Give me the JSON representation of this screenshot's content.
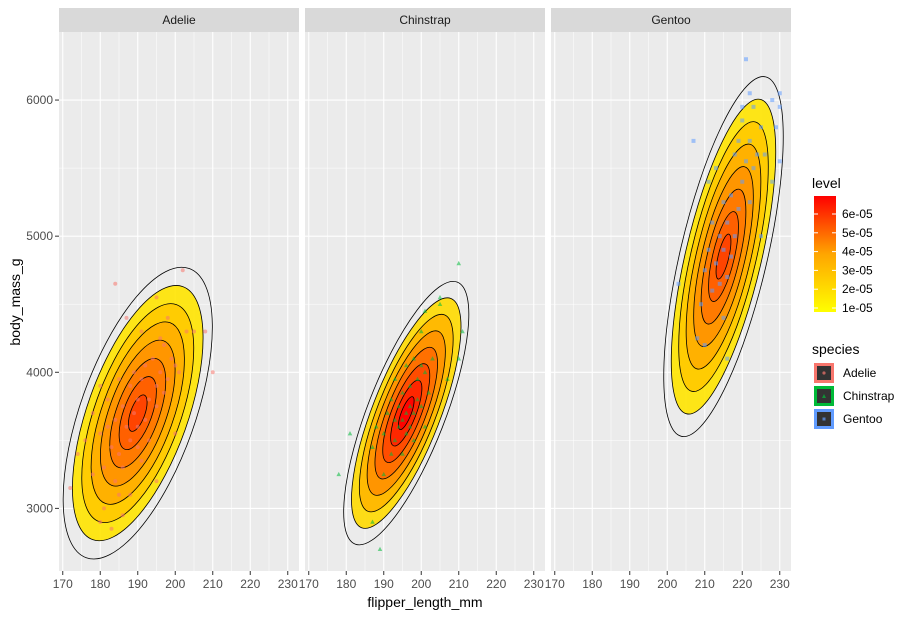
{
  "chart_data": {
    "type": "scatter",
    "xlabel": "flipper_length_mm",
    "ylabel": "body_mass_g",
    "xlim": [
      169,
      233
    ],
    "ylim": [
      2540,
      6500
    ],
    "x_ticks": [
      170,
      180,
      190,
      200,
      210,
      220,
      230
    ],
    "y_ticks": [
      3000,
      4000,
      5000,
      6000
    ],
    "grid": true,
    "facets": [
      "Adelie",
      "Chinstrap",
      "Gentoo"
    ],
    "level_legend": {
      "title": "level",
      "labels": [
        "6e-05",
        "5e-05",
        "4e-05",
        "3e-05",
        "2e-05",
        "1e-05"
      ],
      "low_color": "#FFFF00",
      "high_color": "#FF0000"
    },
    "species_legend": {
      "title": "species",
      "entries": [
        {
          "name": "Adelie",
          "color": "#F8766D"
        },
        {
          "name": "Chinstrap",
          "color": "#00BA38"
        },
        {
          "name": "Gentoo",
          "color": "#619CFF"
        }
      ]
    },
    "series": [
      {
        "name": "Adelie",
        "color": "#F8766D",
        "shape": "circle",
        "density_center": [
          190,
          3700
        ],
        "points": [
          [
            172,
            3150
          ],
          [
            174,
            3400
          ],
          [
            176,
            3500
          ],
          [
            178,
            3250
          ],
          [
            178,
            3700
          ],
          [
            180,
            3900
          ],
          [
            180,
            3550
          ],
          [
            181,
            3300
          ],
          [
            182,
            3600
          ],
          [
            182,
            3800
          ],
          [
            183,
            3450
          ],
          [
            184,
            3200
          ],
          [
            184,
            3650
          ],
          [
            184,
            4650
          ],
          [
            185,
            3950
          ],
          [
            185,
            3400
          ],
          [
            186,
            3750
          ],
          [
            186,
            3300
          ],
          [
            187,
            4400
          ],
          [
            187,
            3600
          ],
          [
            188,
            3900
          ],
          [
            188,
            3500
          ],
          [
            188,
            3100
          ],
          [
            189,
            4000
          ],
          [
            189,
            3700
          ],
          [
            190,
            3800
          ],
          [
            190,
            3450
          ],
          [
            190,
            3600
          ],
          [
            191,
            4300
          ],
          [
            191,
            3950
          ],
          [
            191,
            3350
          ],
          [
            192,
            3650
          ],
          [
            192,
            4050
          ],
          [
            193,
            3800
          ],
          [
            193,
            3500
          ],
          [
            194,
            4100
          ],
          [
            195,
            3900
          ],
          [
            195,
            3750
          ],
          [
            195,
            4550
          ],
          [
            196,
            4250
          ],
          [
            196,
            4000
          ],
          [
            197,
            3850
          ],
          [
            197,
            4200
          ],
          [
            198,
            4400
          ],
          [
            198,
            3950
          ],
          [
            199,
            4100
          ],
          [
            200,
            4050
          ],
          [
            200,
            3550
          ],
          [
            201,
            4000
          ],
          [
            202,
            4750
          ],
          [
            203,
            4300
          ],
          [
            205,
            4300
          ],
          [
            208,
            4300
          ],
          [
            210,
            4000
          ],
          [
            180,
            2900
          ],
          [
            183,
            2850
          ],
          [
            186,
            2950
          ],
          [
            195,
            3200
          ],
          [
            185,
            3100
          ],
          [
            181,
            3000
          ]
        ]
      },
      {
        "name": "Chinstrap",
        "color": "#00BA38",
        "shape": "triangle",
        "density_center": [
          196,
          3700
        ],
        "points": [
          [
            178,
            3250
          ],
          [
            181,
            3550
          ],
          [
            187,
            2900
          ],
          [
            189,
            2700
          ],
          [
            187,
            3450
          ],
          [
            188,
            3600
          ],
          [
            190,
            3250
          ],
          [
            190,
            3550
          ],
          [
            191,
            3700
          ],
          [
            192,
            3400
          ],
          [
            192,
            3800
          ],
          [
            193,
            3500
          ],
          [
            193,
            3650
          ],
          [
            193,
            3950
          ],
          [
            194,
            3600
          ],
          [
            194,
            3750
          ],
          [
            195,
            3400
          ],
          [
            195,
            3650
          ],
          [
            195,
            3850
          ],
          [
            196,
            3550
          ],
          [
            196,
            3700
          ],
          [
            196,
            4050
          ],
          [
            197,
            3750
          ],
          [
            197,
            3600
          ],
          [
            197,
            3900
          ],
          [
            198,
            3700
          ],
          [
            198,
            3500
          ],
          [
            198,
            4100
          ],
          [
            199,
            3800
          ],
          [
            199,
            3950
          ],
          [
            200,
            3750
          ],
          [
            200,
            4050
          ],
          [
            200,
            4300
          ],
          [
            201,
            3600
          ],
          [
            201,
            4000
          ],
          [
            201,
            4450
          ],
          [
            202,
            3850
          ],
          [
            203,
            4100
          ],
          [
            205,
            4550
          ],
          [
            205,
            4500
          ],
          [
            207,
            3950
          ],
          [
            210,
            4800
          ],
          [
            210,
            4100
          ],
          [
            211,
            4300
          ]
        ]
      },
      {
        "name": "Gentoo",
        "color": "#619CFF",
        "shape": "square",
        "density_center": [
          215,
          4850
        ],
        "points": [
          [
            203,
            4650
          ],
          [
            207,
            5700
          ],
          [
            208,
            4250
          ],
          [
            209,
            4500
          ],
          [
            210,
            4200
          ],
          [
            210,
            4750
          ],
          [
            211,
            4900
          ],
          [
            211,
            5400
          ],
          [
            212,
            4600
          ],
          [
            212,
            5100
          ],
          [
            213,
            4800
          ],
          [
            213,
            5500
          ],
          [
            214,
            4650
          ],
          [
            214,
            5000
          ],
          [
            215,
            4900
          ],
          [
            215,
            4400
          ],
          [
            215,
            5250
          ],
          [
            216,
            4700
          ],
          [
            216,
            5100
          ],
          [
            216,
            4100
          ],
          [
            217,
            5300
          ],
          [
            217,
            4850
          ],
          [
            218,
            5000
          ],
          [
            218,
            5600
          ],
          [
            219,
            5200
          ],
          [
            219,
            5700
          ],
          [
            220,
            5400
          ],
          [
            220,
            5850
          ],
          [
            221,
            5550
          ],
          [
            221,
            6300
          ],
          [
            222,
            5700
          ],
          [
            222,
            5250
          ],
          [
            223,
            5500
          ],
          [
            223,
            5950
          ],
          [
            224,
            5600
          ],
          [
            225,
            5800
          ],
          [
            225,
            5000
          ],
          [
            226,
            5600
          ],
          [
            228,
            5400
          ],
          [
            228,
            6000
          ],
          [
            229,
            5800
          ],
          [
            230,
            5950
          ],
          [
            230,
            5550
          ],
          [
            230,
            6050
          ],
          [
            220,
            5950
          ],
          [
            222,
            6050
          ]
        ]
      }
    ]
  }
}
